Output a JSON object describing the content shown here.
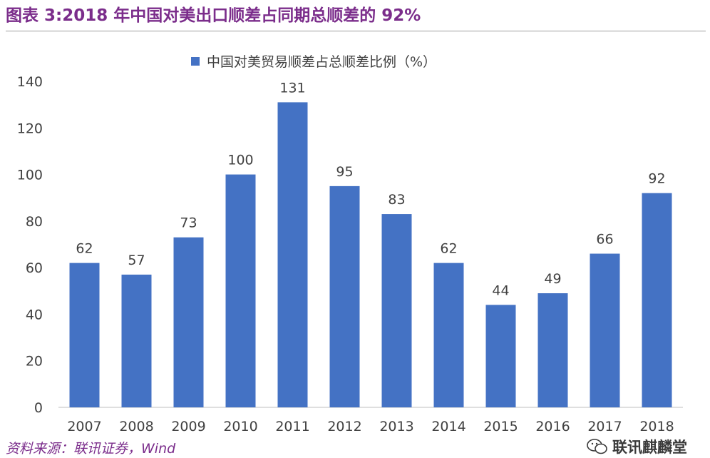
{
  "figure": {
    "title": "图表 3:2018 年中国对美出口顺差占同期总顺差的 92%",
    "source": "资料来源：联讯证券，Wind",
    "watermark": "联讯麒麟堂"
  },
  "chart_data": {
    "type": "bar",
    "categories": [
      "2007",
      "2008",
      "2009",
      "2010",
      "2011",
      "2012",
      "2013",
      "2014",
      "2015",
      "2016",
      "2017",
      "2018"
    ],
    "series": [
      {
        "name": "中国对美贸易顺差占总顺差比例（%）",
        "values": [
          62,
          57,
          73,
          100,
          131,
          95,
          83,
          62,
          44,
          49,
          66,
          92
        ],
        "color": "#4472c4"
      }
    ],
    "ylim": [
      0,
      140
    ],
    "yticks": [
      0,
      20,
      40,
      60,
      80,
      100,
      120,
      140
    ],
    "data_labels": true,
    "grid": false,
    "legend": "top-center"
  }
}
